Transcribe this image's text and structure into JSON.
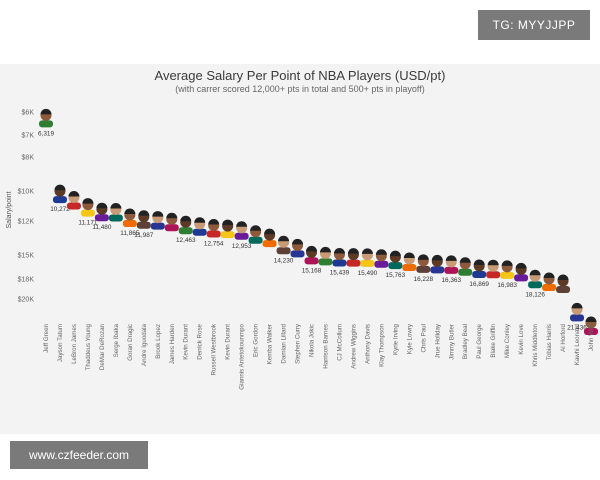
{
  "overlays": {
    "top_badge": "TG: MYYJJPP",
    "bottom_badge": "www.czfeeder.com"
  },
  "chart_data": {
    "type": "scatter",
    "title": "Average Salary Per Point of NBA Players (USD/pt)",
    "subtitle": "(with carrer scored 12,000+ pts in total and 500+ pts in playoff)",
    "ylabel": "Salary/point",
    "y_reversed": true,
    "yticks": [
      {
        "label": "$6K",
        "v": 6000
      },
      {
        "label": "$7K",
        "v": 7000
      },
      {
        "label": "$8K",
        "v": 8000
      },
      {
        "label": "$10K",
        "v": 10000
      },
      {
        "label": "$12K",
        "v": 12000
      },
      {
        "label": "$15K",
        "v": 15000
      },
      {
        "label": "$18K",
        "v": 18000
      },
      {
        "label": "$20K",
        "v": 20000
      }
    ],
    "players": [
      {
        "name": "Jeff Green",
        "value": 6319,
        "label": "6,319"
      },
      {
        "name": "Jayson Tatum",
        "value": 10272,
        "label": "10,272"
      },
      {
        "name": "LeBron James",
        "value": 10700
      },
      {
        "name": "Thaddeus Young",
        "value": 11171,
        "label": "11,171"
      },
      {
        "name": "DeMar DeRozan",
        "value": 11480,
        "label": "11,480"
      },
      {
        "name": "Serge Ibaka",
        "value": 11500
      },
      {
        "name": "Goran Dragic",
        "value": 11865,
        "label": "11,865"
      },
      {
        "name": "Andre Iguodala",
        "value": 11987,
        "label": "11,987"
      },
      {
        "name": "Brook Lopez",
        "value": 12050
      },
      {
        "name": "James Harden",
        "value": 12200
      },
      {
        "name": "Kevin Durant",
        "value": 12463,
        "label": "12,463"
      },
      {
        "name": "Derrick Rose",
        "value": 12600
      },
      {
        "name": "Russell Westbrook",
        "value": 12754,
        "label": "12,754"
      },
      {
        "name": "Kevin Durant",
        "value": 12800
      },
      {
        "name": "Giannis Antetokounmpo",
        "value": 12953,
        "label": "12,953"
      },
      {
        "name": "Eric Gordon",
        "value": 13300
      },
      {
        "name": "Kemba Walker",
        "value": 13600
      },
      {
        "name": "Damian Lillard",
        "value": 14230,
        "label": "14,230"
      },
      {
        "name": "Stephen Curry",
        "value": 14500
      },
      {
        "name": "Nikola Jokic",
        "value": 15168,
        "label": "15,168"
      },
      {
        "name": "Harrison Barnes",
        "value": 15300
      },
      {
        "name": "CJ McCollum",
        "value": 15439,
        "label": "15,439"
      },
      {
        "name": "Andrew Wiggins",
        "value": 15450
      },
      {
        "name": "Anthony Davis",
        "value": 15490,
        "label": "15,490"
      },
      {
        "name": "Klay Thompson",
        "value": 15600
      },
      {
        "name": "Kyrie Irving",
        "value": 15763,
        "label": "15,763"
      },
      {
        "name": "Kyle Lowry",
        "value": 16000
      },
      {
        "name": "Chris Paul",
        "value": 16228,
        "label": "16,228"
      },
      {
        "name": "Jrue Holiday",
        "value": 16300
      },
      {
        "name": "Jimmy Butler",
        "value": 16363,
        "label": "16,363"
      },
      {
        "name": "Bradley Beal",
        "value": 16600
      },
      {
        "name": "Paul George",
        "value": 16869,
        "label": "16,869"
      },
      {
        "name": "Blake Griffin",
        "value": 16900
      },
      {
        "name": "Mike Conley",
        "value": 16983,
        "label": "16,983"
      },
      {
        "name": "Kevin Love",
        "value": 17300
      },
      {
        "name": "Khris Middleton",
        "value": 18126,
        "label": "18,126"
      },
      {
        "name": "Tobias Harris",
        "value": 18400
      },
      {
        "name": "Al Horford",
        "value": 18600
      },
      {
        "name": "Kawhi Leonard",
        "value": 21436,
        "label": "21,436"
      },
      {
        "name": "John Wall",
        "value": 22800
      }
    ]
  }
}
